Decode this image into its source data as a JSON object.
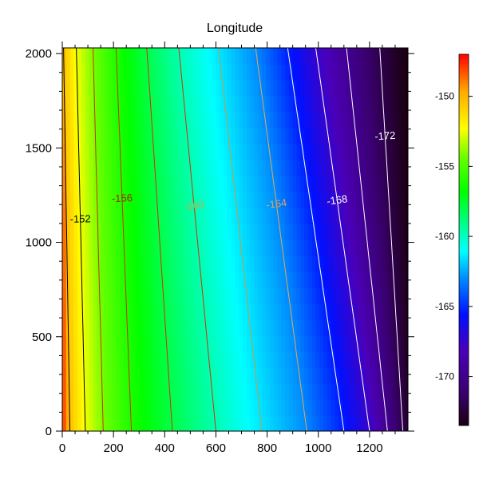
{
  "chart_data": {
    "type": "heatmap",
    "title": "Longitude",
    "xlabel": "",
    "ylabel": "",
    "xlim": [
      0,
      1350
    ],
    "ylim": [
      0,
      2030
    ],
    "x_ticks": [
      0,
      200,
      400,
      600,
      800,
      1000,
      1200
    ],
    "y_ticks": [
      0,
      500,
      1000,
      1500,
      2000
    ],
    "colorbar": {
      "range": [
        -173.5,
        -147
      ],
      "ticks": [
        "-150",
        "-155",
        "-160",
        "-165",
        "-170"
      ],
      "tick_values": [
        -150,
        -155,
        -160,
        -165,
        -170
      ]
    },
    "field_model": {
      "description": "Longitude field varying mostly with x; contours tilt toward smaller x at larger y",
      "value_at_origin": -147.5,
      "value_at_right_bottom": -172.8,
      "contours_at_y0": [
        {
          "level": -150,
          "x": 30
        },
        {
          "level": -152,
          "x": 90
        },
        {
          "level": -154,
          "x": 160
        },
        {
          "level": -156,
          "x": 270
        },
        {
          "level": -158,
          "x": 430
        },
        {
          "level": -160,
          "x": 600
        },
        {
          "level": -162,
          "x": 780
        },
        {
          "level": -164,
          "x": 955
        },
        {
          "level": -166,
          "x": 1100
        },
        {
          "level": -168,
          "x": 1200
        },
        {
          "level": -170,
          "x": 1270
        },
        {
          "level": -172,
          "x": 1330
        }
      ],
      "contours_at_y2030": [
        {
          "level": -150,
          "x": 5
        },
        {
          "level": -152,
          "x": 55
        },
        {
          "level": -154,
          "x": 120
        },
        {
          "level": -156,
          "x": 210
        },
        {
          "level": -158,
          "x": 330
        },
        {
          "level": -160,
          "x": 455
        },
        {
          "level": -162,
          "x": 610
        },
        {
          "level": -164,
          "x": 755
        },
        {
          "level": -166,
          "x": 880
        },
        {
          "level": -168,
          "x": 990
        },
        {
          "level": -170,
          "x": 1110
        },
        {
          "level": -172,
          "x": 1240
        }
      ]
    },
    "contour_labels": [
      {
        "text": "-152",
        "level": -152,
        "y": 1120
      },
      {
        "text": "-156",
        "level": -156,
        "y": 1230
      },
      {
        "text": "-160",
        "level": -160,
        "y": 1190
      },
      {
        "text": "-164",
        "level": -164,
        "y": 1200
      },
      {
        "text": "-168",
        "level": -168,
        "y": 1220
      },
      {
        "text": "-172",
        "level": -172,
        "y": 1560
      }
    ],
    "colors": {
      "colormap": [
        "#1a0010",
        "#3a0070",
        "#4b00b8",
        "#0010ff",
        "#0090ff",
        "#00ffff",
        "#00ff80",
        "#00ff00",
        "#66ff00",
        "#ffff00",
        "#ffaa00",
        "#ff0000"
      ]
    }
  }
}
